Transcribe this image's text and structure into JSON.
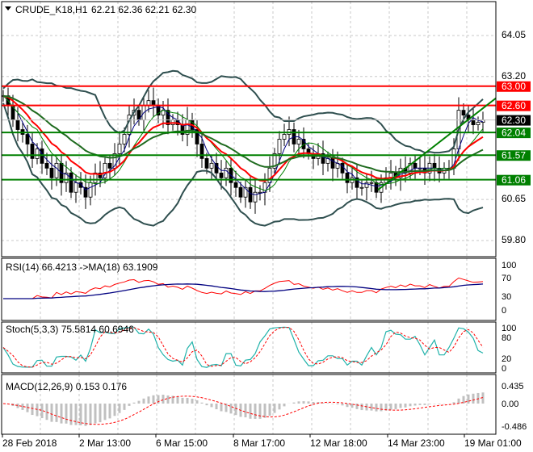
{
  "header": {
    "symbol": "CRUDE_K18,H1",
    "ohlc": "62.21 62.36 62.21 62.30"
  },
  "colors": {
    "resistance": "#ff0000",
    "support": "#008000",
    "current": "#000000",
    "ma_red": "#ff0000",
    "bands": "#2f4f4f",
    "rsi": "#ff0000",
    "rsi_ma": "#000080",
    "stoch_main": "#20b2aa",
    "stoch_signal": "#ff0000",
    "macd_hist": "#c0c0c0"
  },
  "chart_data": [
    {
      "type": "candlestick",
      "price_axis": {
        "ticks": [
          "64.05",
          "63.20",
          "60.65",
          "59.80"
        ],
        "range": [
          59.6,
          64.45
        ]
      },
      "levels": [
        {
          "value": 63.0,
          "label": "63.00",
          "kind": "resistance"
        },
        {
          "value": 62.6,
          "label": "62.60",
          "kind": "resistance"
        },
        {
          "value": 62.3,
          "label": "62.30",
          "kind": "current"
        },
        {
          "value": 62.04,
          "label": "62.04",
          "kind": "support"
        },
        {
          "value": 61.57,
          "label": "61.57",
          "kind": "support"
        },
        {
          "value": 61.06,
          "label": "61.06",
          "kind": "support"
        }
      ],
      "trendline": {
        "from_price": 60.85,
        "to_price": 62.3
      },
      "close": [
        62.8,
        62.6,
        62.3,
        62.1,
        62.0,
        61.8,
        61.5,
        61.7,
        61.4,
        61.3,
        61.1,
        61.4,
        61.0,
        61.2,
        60.8,
        61.0,
        60.9,
        60.7,
        61.0,
        61.2,
        61.1,
        61.4,
        61.3,
        61.6,
        61.8,
        62.0,
        62.4,
        62.5,
        62.3,
        62.6,
        62.7,
        62.6,
        62.4,
        62.5,
        62.2,
        62.3,
        62.2,
        62.0,
        62.3,
        62.1,
        61.8,
        61.5,
        61.3,
        61.4,
        61.2,
        61.1,
        61.3,
        61.0,
        60.9,
        60.7,
        60.9,
        60.6,
        60.8,
        60.8,
        61.0,
        61.3,
        61.6,
        61.9,
        62.0,
        62.1,
        61.8,
        61.9,
        61.7,
        61.6,
        61.5,
        61.6,
        61.4,
        61.5,
        61.3,
        61.4,
        61.2,
        61.0,
        61.1,
        60.9,
        60.9,
        61.0,
        61.0,
        60.8,
        61.0,
        61.1,
        61.2,
        61.1,
        61.3,
        61.2,
        61.4,
        61.3,
        61.3,
        61.2,
        61.4,
        61.3,
        61.2,
        61.3,
        61.3,
        61.7,
        62.5,
        62.4,
        62.3,
        62.2,
        62.25,
        62.3
      ]
    },
    {
      "type": "line",
      "title": "RSI(14) 66.4213  ->MA(18) 63.1909",
      "ticks": [
        "100",
        "70",
        "30",
        "0"
      ],
      "range": [
        0,
        100
      ]
    },
    {
      "type": "line",
      "title": "Stoch(5,3,3) 75.5814 60.6946",
      "ticks": [
        "100",
        "80",
        "20",
        "0"
      ],
      "range": [
        0,
        100
      ]
    },
    {
      "type": "bar",
      "title": "MACD(12,26,9) 0.153 0.176",
      "ticks": [
        "0.435",
        "0.00",
        "-0.486"
      ],
      "range": [
        -0.486,
        0.435
      ]
    }
  ],
  "time_axis": [
    "28 Feb 2018",
    "2 Mar 13:00",
    "6 Mar 15:00",
    "8 Mar 17:00",
    "12 Mar 18:00",
    "14 Mar 23:00",
    "19 Mar 01:00"
  ]
}
